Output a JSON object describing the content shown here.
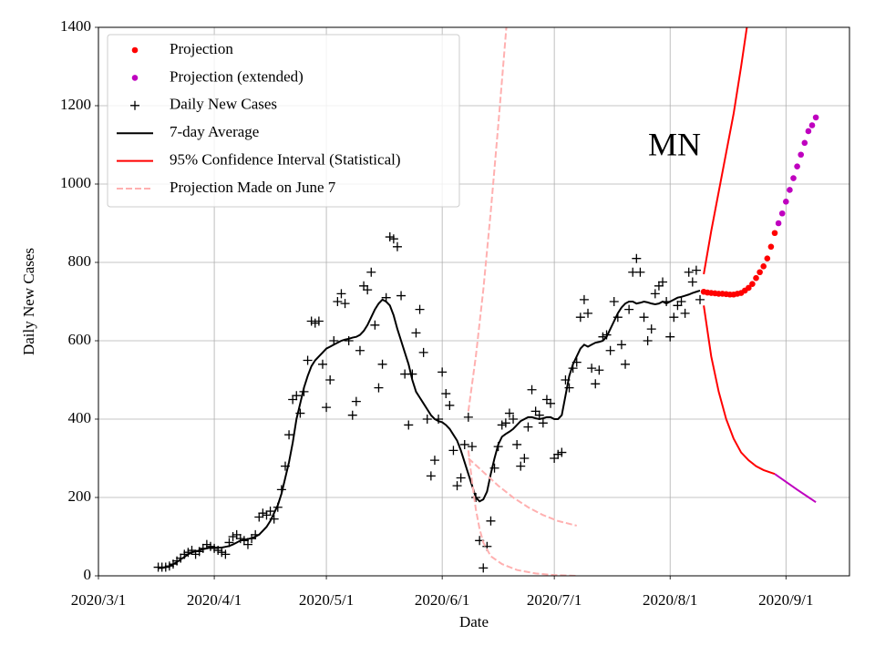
{
  "chart_data": {
    "type": "line",
    "annotation": "MN",
    "x_label": "Date",
    "y_label": "Daily New Cases",
    "xlim": [
      "2020/3/1",
      "2020/9/18"
    ],
    "xticks": [
      "2020/3/1",
      "2020/4/1",
      "2020/5/1",
      "2020/6/1",
      "2020/7/1",
      "2020/8/1",
      "2020/9/1"
    ],
    "ylim": [
      0,
      1400
    ],
    "yticks": [
      0,
      200,
      400,
      600,
      800,
      1000,
      1200,
      1400
    ],
    "grid": true,
    "legend": "upper left",
    "series": [
      {
        "name": "Projection",
        "color": "#ff0000",
        "style": "dot",
        "segments": [
          {
            "x": [
              "2020/8/10",
              "2020/8/11",
              "2020/8/12",
              "2020/8/13",
              "2020/8/14",
              "2020/8/15",
              "2020/8/16",
              "2020/8/17",
              "2020/8/18",
              "2020/8/19",
              "2020/8/20",
              "2020/8/21",
              "2020/8/22",
              "2020/8/23",
              "2020/8/24",
              "2020/8/25",
              "2020/8/26",
              "2020/8/27",
              "2020/8/28",
              "2020/8/29"
            ],
            "values": [
              725,
              723,
              722,
              721,
              720,
              720,
              719,
              718,
              718,
              720,
              722,
              728,
              735,
              745,
              760,
              775,
              790,
              810,
              840,
              875
            ]
          }
        ]
      },
      {
        "name": "Projection (extended)",
        "color": "#bf00bf",
        "style": "dot",
        "segments": [
          {
            "x": [
              "2020/8/30",
              "2020/8/31",
              "2020/9/1",
              "2020/9/2",
              "2020/9/3",
              "2020/9/4",
              "2020/9/5",
              "2020/9/6",
              "2020/9/7",
              "2020/9/8",
              "2020/9/9"
            ],
            "values": [
              900,
              925,
              955,
              985,
              1015,
              1045,
              1075,
              1105,
              1135,
              1150,
              1170
            ]
          }
        ]
      },
      {
        "name": "Daily New Cases",
        "color": "#000000",
        "style": "plus",
        "segments": [
          {
            "x": [
              "2020/3/17",
              "2020/3/18",
              "2020/3/19",
              "2020/3/20",
              "2020/3/21",
              "2020/3/22",
              "2020/3/23",
              "2020/3/24",
              "2020/3/25",
              "2020/3/26",
              "2020/3/27",
              "2020/3/28",
              "2020/3/29",
              "2020/3/30",
              "2020/3/31",
              "2020/4/1",
              "2020/4/2",
              "2020/4/3",
              "2020/4/4",
              "2020/4/5",
              "2020/4/6",
              "2020/4/7",
              "2020/4/8",
              "2020/4/9",
              "2020/4/10",
              "2020/4/11",
              "2020/4/12",
              "2020/4/13",
              "2020/4/14",
              "2020/4/15",
              "2020/4/16",
              "2020/4/17",
              "2020/4/18",
              "2020/4/19",
              "2020/4/20",
              "2020/4/21",
              "2020/4/22",
              "2020/4/23",
              "2020/4/24",
              "2020/4/25",
              "2020/4/26",
              "2020/4/27",
              "2020/4/28",
              "2020/4/29",
              "2020/4/30",
              "2020/5/1",
              "2020/5/2",
              "2020/5/3",
              "2020/5/4",
              "2020/5/5",
              "2020/5/6",
              "2020/5/7",
              "2020/5/8",
              "2020/5/9",
              "2020/5/10",
              "2020/5/11",
              "2020/5/12",
              "2020/5/13",
              "2020/5/14",
              "2020/5/15",
              "2020/5/16",
              "2020/5/17",
              "2020/5/18",
              "2020/5/19",
              "2020/5/20",
              "2020/5/21",
              "2020/5/22",
              "2020/5/23",
              "2020/5/24",
              "2020/5/25",
              "2020/5/26",
              "2020/5/27",
              "2020/5/28",
              "2020/5/29",
              "2020/5/30",
              "2020/5/31",
              "2020/6/1",
              "2020/6/2",
              "2020/6/3",
              "2020/6/4",
              "2020/6/5",
              "2020/6/6",
              "2020/6/7",
              "2020/6/8",
              "2020/6/9",
              "2020/6/10",
              "2020/6/11",
              "2020/6/12",
              "2020/6/13",
              "2020/6/14",
              "2020/6/15",
              "2020/6/16",
              "2020/6/17",
              "2020/6/18",
              "2020/6/19",
              "2020/6/20",
              "2020/6/21",
              "2020/6/22",
              "2020/6/23",
              "2020/6/24",
              "2020/6/25",
              "2020/6/26",
              "2020/6/27",
              "2020/6/28",
              "2020/6/29",
              "2020/6/30",
              "2020/7/1",
              "2020/7/2",
              "2020/7/3",
              "2020/7/4",
              "2020/7/5",
              "2020/7/6",
              "2020/7/7",
              "2020/7/8",
              "2020/7/9",
              "2020/7/10",
              "2020/7/11",
              "2020/7/12",
              "2020/7/13",
              "2020/7/14",
              "2020/7/15",
              "2020/7/16",
              "2020/7/17",
              "2020/7/18",
              "2020/7/19",
              "2020/7/20",
              "2020/7/21",
              "2020/7/22",
              "2020/7/23",
              "2020/7/24",
              "2020/7/25",
              "2020/7/26",
              "2020/7/27",
              "2020/7/28",
              "2020/7/29",
              "2020/7/30",
              "2020/7/31",
              "2020/8/1",
              "2020/8/2",
              "2020/8/3",
              "2020/8/4",
              "2020/8/5",
              "2020/8/6",
              "2020/8/7",
              "2020/8/8",
              "2020/8/9"
            ],
            "values": [
              22,
              22,
              22,
              25,
              30,
              38,
              45,
              55,
              60,
              65,
              55,
              62,
              70,
              80,
              75,
              70,
              65,
              60,
              55,
              85,
              100,
              105,
              95,
              90,
              80,
              95,
              105,
              150,
              160,
              155,
              165,
              145,
              175,
              220,
              280,
              360,
              450,
              460,
              415,
              470,
              550,
              650,
              645,
              650,
              540,
              430,
              500,
              600,
              700,
              720,
              695,
              600,
              410,
              445,
              575,
              740,
              730,
              775,
              640,
              480,
              540,
              710,
              865,
              860,
              840,
              715,
              515,
              385,
              515,
              620,
              680,
              570,
              400,
              255,
              295,
              400,
              520,
              465,
              435,
              320,
              230,
              250,
              335,
              405,
              330,
              200,
              90,
              20,
              75,
              140,
              275,
              330,
              385,
              390,
              415,
              400,
              335,
              280,
              300,
              380,
              475,
              420,
              410,
              390,
              450,
              440,
              300,
              310,
              315,
              500,
              480,
              530,
              545,
              660,
              705,
              670,
              530,
              490,
              525,
              610,
              615,
              575,
              700,
              660,
              590,
              540,
              680,
              775,
              810,
              775,
              660,
              600,
              630,
              720,
              740,
              750,
              700,
              610,
              660,
              690,
              700,
              670,
              775,
              750,
              780,
              705
            ]
          }
        ]
      },
      {
        "name": "7-day Average",
        "color": "#000000",
        "style": "line",
        "segments": [
          {
            "x": [
              "2020/3/17",
              "2020/3/18",
              "2020/3/19",
              "2020/3/20",
              "2020/3/21",
              "2020/3/22",
              "2020/3/23",
              "2020/3/24",
              "2020/3/25",
              "2020/3/26",
              "2020/3/27",
              "2020/3/28",
              "2020/3/29",
              "2020/3/30",
              "2020/3/31",
              "2020/4/1",
              "2020/4/2",
              "2020/4/3",
              "2020/4/4",
              "2020/4/5",
              "2020/4/6",
              "2020/4/7",
              "2020/4/8",
              "2020/4/9",
              "2020/4/10",
              "2020/4/11",
              "2020/4/12",
              "2020/4/13",
              "2020/4/14",
              "2020/4/15",
              "2020/4/16",
              "2020/4/17",
              "2020/4/18",
              "2020/4/19",
              "2020/4/20",
              "2020/4/21",
              "2020/4/22",
              "2020/4/23",
              "2020/4/24",
              "2020/4/25",
              "2020/4/26",
              "2020/4/27",
              "2020/4/28",
              "2020/4/29",
              "2020/4/30",
              "2020/5/1",
              "2020/5/2",
              "2020/5/3",
              "2020/5/4",
              "2020/5/5",
              "2020/5/6",
              "2020/5/7",
              "2020/5/8",
              "2020/5/9",
              "2020/5/10",
              "2020/5/11",
              "2020/5/12",
              "2020/5/13",
              "2020/5/14",
              "2020/5/15",
              "2020/5/16",
              "2020/5/17",
              "2020/5/18",
              "2020/5/19",
              "2020/5/20",
              "2020/5/21",
              "2020/5/22",
              "2020/5/23",
              "2020/5/24",
              "2020/5/25",
              "2020/5/26",
              "2020/5/27",
              "2020/5/28",
              "2020/5/29",
              "2020/5/30",
              "2020/5/31",
              "2020/6/1",
              "2020/6/2",
              "2020/6/3",
              "2020/6/4",
              "2020/6/5",
              "2020/6/6",
              "2020/6/7",
              "2020/6/8",
              "2020/6/9",
              "2020/6/10",
              "2020/6/11",
              "2020/6/12",
              "2020/6/13",
              "2020/6/14",
              "2020/6/15",
              "2020/6/16",
              "2020/6/17",
              "2020/6/18",
              "2020/6/19",
              "2020/6/20",
              "2020/6/21",
              "2020/6/22",
              "2020/6/23",
              "2020/6/24",
              "2020/6/25",
              "2020/6/26",
              "2020/6/27",
              "2020/6/28",
              "2020/6/29",
              "2020/6/30",
              "2020/7/1",
              "2020/7/2",
              "2020/7/3",
              "2020/7/4",
              "2020/7/5",
              "2020/7/6",
              "2020/7/7",
              "2020/7/8",
              "2020/7/9",
              "2020/7/10",
              "2020/7/11",
              "2020/7/12",
              "2020/7/13",
              "2020/7/14",
              "2020/7/15",
              "2020/7/16",
              "2020/7/17",
              "2020/7/18",
              "2020/7/19",
              "2020/7/20",
              "2020/7/21",
              "2020/7/22",
              "2020/7/23",
              "2020/7/24",
              "2020/7/25",
              "2020/7/26",
              "2020/7/27",
              "2020/7/28",
              "2020/7/29",
              "2020/7/30",
              "2020/7/31",
              "2020/8/1",
              "2020/8/2",
              "2020/8/3",
              "2020/8/4",
              "2020/8/5",
              "2020/8/6",
              "2020/8/7",
              "2020/8/8",
              "2020/8/9"
            ],
            "values": [
              20,
              20,
              22,
              25,
              30,
              35,
              42,
              48,
              55,
              60,
              62,
              65,
              68,
              70,
              72,
              72,
              72,
              72,
              74,
              76,
              80,
              85,
              90,
              92,
              94,
              96,
              100,
              105,
              115,
              125,
              140,
              160,
              180,
              210,
              250,
              290,
              340,
              400,
              440,
              480,
              510,
              535,
              550,
              560,
              570,
              580,
              585,
              590,
              595,
              600,
              603,
              605,
              608,
              610,
              615,
              625,
              640,
              660,
              680,
              695,
              705,
              700,
              690,
              665,
              630,
              600,
              570,
              540,
              500,
              470,
              455,
              440,
              425,
              410,
              400,
              395,
              392,
              385,
              375,
              360,
              345,
              320,
              290,
              260,
              230,
              200,
              190,
              195,
              215,
              260,
              300,
              335,
              355,
              362,
              368,
              375,
              385,
              395,
              400,
              405,
              405,
              402,
              400,
              402,
              405,
              405,
              400,
              400,
              410,
              460,
              510,
              540,
              560,
              580,
              590,
              585,
              590,
              595,
              597,
              600,
              610,
              630,
              650,
              670,
              685,
              695,
              700,
              700,
              695,
              697,
              700,
              698,
              695,
              693,
              695,
              700,
              695,
              700,
              705,
              710,
              712,
              715,
              718,
              722,
              725,
              728
            ]
          }
        ]
      },
      {
        "name": "95% Confidence Interval (Statistical)",
        "color": "#ff0000",
        "style": "line",
        "segments": [
          {
            "x": [
              "2020/8/10",
              "2020/8/12",
              "2020/8/14",
              "2020/8/16",
              "2020/8/18",
              "2020/8/20",
              "2020/8/22"
            ],
            "values": [
              770,
              880,
              980,
              1080,
              1180,
              1300,
              1430
            ]
          },
          {
            "x": [
              "2020/8/10",
              "2020/8/12",
              "2020/8/14",
              "2020/8/16",
              "2020/8/18",
              "2020/8/20",
              "2020/8/22",
              "2020/8/24",
              "2020/8/26",
              "2020/8/29"
            ],
            "values": [
              690,
              560,
              470,
              400,
              350,
              315,
              295,
              280,
              270,
              260
            ]
          },
          {
            "color": "#bf00bf",
            "x": [
              "2020/8/29",
              "2020/9/1",
              "2020/9/4",
              "2020/9/9"
            ],
            "values": [
              260,
              240,
              220,
              188
            ]
          }
        ]
      },
      {
        "name": "Projection Made on June 7",
        "color": "#ffb0b0",
        "style": "dashed",
        "segments": [
          {
            "x": [
              "2020/6/8",
              "2020/6/10",
              "2020/6/12",
              "2020/6/14",
              "2020/6/16",
              "2020/6/18",
              "2020/6/19"
            ],
            "values": [
              420,
              560,
              730,
              930,
              1150,
              1380,
              1500
            ]
          },
          {
            "x": [
              "2020/6/8",
              "2020/6/12",
              "2020/6/16",
              "2020/6/20",
              "2020/6/24",
              "2020/6/28",
              "2020/7/2",
              "2020/7/7"
            ],
            "values": [
              300,
              265,
              230,
              200,
              175,
              155,
              140,
              128
            ]
          },
          {
            "x": [
              "2020/6/8",
              "2020/6/9",
              "2020/6/10",
              "2020/6/11",
              "2020/6/12",
              "2020/6/14",
              "2020/6/17",
              "2020/6/21",
              "2020/6/26",
              "2020/7/1",
              "2020/7/7"
            ],
            "values": [
              320,
              240,
              170,
              120,
              85,
              50,
              30,
              15,
              6,
              2,
              0
            ]
          }
        ]
      }
    ]
  }
}
